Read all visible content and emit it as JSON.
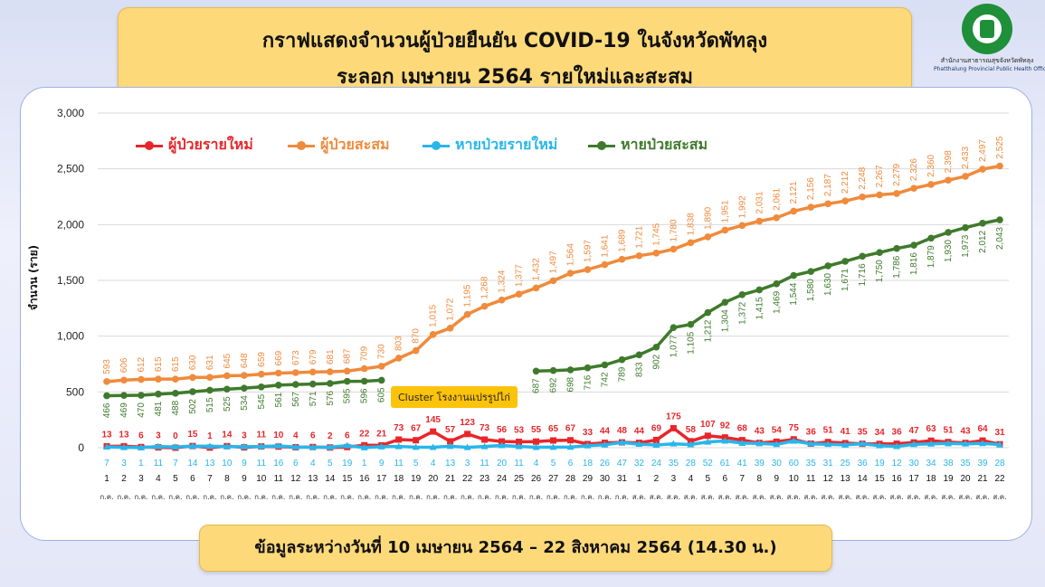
{
  "title": {
    "line1": "กราฟแสดงจำนวนผู้ป่วยยืนยัน COVID-19 ในจังหวัดพัทลุง",
    "line2": "ระลอก เมษายน 2564 รายใหม่และสะสม"
  },
  "logo": {
    "thai": "สำนักงานสาธารณสุขจังหวัดพัทลุง",
    "eng": "Phatthalung Provincial Public Health Office"
  },
  "footer": "ข้อมูลระหว่างวันที่ 10 เมษายน 2564 – 22 สิงหาคม 2564 (14.30 น.)",
  "annotation": "Cluster โรงงานแปรรูปไก่",
  "colors": {
    "new_cases": "#e8262a",
    "cumulative": "#f08a3c",
    "new_recovered": "#28b6ea",
    "cum_recovered": "#3f7a2c"
  },
  "chart_data": {
    "type": "line",
    "ylabel": "จำนวน (ราย)",
    "ylim": [
      0,
      3000
    ],
    "yticks": [
      "0",
      "500",
      "1,000",
      "1,500",
      "2,000",
      "2,500",
      "3,000"
    ],
    "x": [
      "1",
      "2",
      "3",
      "4",
      "5",
      "6",
      "7",
      "8",
      "9",
      "10",
      "11",
      "12",
      "13",
      "14",
      "15",
      "16",
      "17",
      "18",
      "19",
      "20",
      "21",
      "22",
      "23",
      "24",
      "25",
      "26",
      "27",
      "28",
      "29",
      "30",
      "31",
      "1",
      "2",
      "3",
      "4",
      "5",
      "6",
      "7",
      "8",
      "9",
      "10",
      "11",
      "12",
      "13",
      "14",
      "15",
      "16",
      "17",
      "18",
      "19",
      "20",
      "21",
      "22"
    ],
    "x_month": [
      "ก.ค.",
      "ก.ค.",
      "ก.ค.",
      "ก.ค.",
      "ก.ค.",
      "ก.ค.",
      "ก.ค.",
      "ก.ค.",
      "ก.ค.",
      "ก.ค.",
      "ก.ค.",
      "ก.ค.",
      "ก.ค.",
      "ก.ค.",
      "ก.ค.",
      "ก.ค.",
      "ก.ค.",
      "ก.ค.",
      "ก.ค.",
      "ก.ค.",
      "ก.ค.",
      "ก.ค.",
      "ก.ค.",
      "ก.ค.",
      "ก.ค.",
      "ก.ค.",
      "ก.ค.",
      "ก.ค.",
      "ก.ค.",
      "ก.ค.",
      "ก.ค.",
      "ส.ค.",
      "ส.ค.",
      "ส.ค.",
      "ส.ค.",
      "ส.ค.",
      "ส.ค.",
      "ส.ค.",
      "ส.ค.",
      "ส.ค.",
      "ส.ค.",
      "ส.ค.",
      "ส.ค.",
      "ส.ค.",
      "ส.ค.",
      "ส.ค.",
      "ส.ค.",
      "ส.ค.",
      "ส.ค.",
      "ส.ค.",
      "ส.ค.",
      "ส.ค.",
      "ส.ค."
    ],
    "legend_position": "top-left",
    "series": [
      {
        "name": "ผู้ป่วยรายใหม่",
        "key": "new_cases",
        "values": [
          13,
          13,
          6,
          3,
          0,
          15,
          1,
          14,
          3,
          11,
          10,
          4,
          6,
          2,
          6,
          22,
          21,
          73,
          67,
          145,
          57,
          123,
          73,
          56,
          53,
          55,
          65,
          67,
          33,
          44,
          48,
          44,
          69,
          175,
          58,
          107,
          92,
          68,
          43,
          54,
          75,
          36,
          51,
          41,
          35,
          34,
          36,
          47,
          63,
          51,
          43,
          64,
          31
        ]
      },
      {
        "name": "ผู้ป่วยสะสม",
        "key": "cumulative",
        "values": [
          593,
          606,
          612,
          615,
          615,
          630,
          631,
          645,
          648,
          659,
          669,
          673,
          679,
          681,
          687,
          709,
          730,
          803,
          870,
          1015,
          1072,
          1195,
          1268,
          1324,
          1377,
          1432,
          1497,
          1564,
          1597,
          1641,
          1689,
          1721,
          1745,
          1780,
          1838,
          1890,
          1951,
          1992,
          2031,
          2061,
          2121,
          2156,
          2187,
          2212,
          2248,
          2267,
          2279,
          2326,
          2360,
          2398,
          2433,
          2497,
          2525
        ]
      },
      {
        "name": "หายป่วยรายใหม่",
        "key": "new_recovered",
        "values": [
          7,
          3,
          1,
          11,
          7,
          14,
          13,
          10,
          9,
          11,
          16,
          6,
          4,
          5,
          19,
          1,
          9,
          11,
          5,
          4,
          13,
          3,
          11,
          20,
          11,
          4,
          5,
          6,
          18,
          26,
          47,
          32,
          24,
          35,
          28,
          52,
          61,
          41,
          39,
          30,
          60,
          35,
          31,
          25,
          36,
          19,
          12,
          30,
          34,
          38,
          35,
          39,
          28
        ]
      },
      {
        "name": "หายป่วยสะสม",
        "key": "cum_recovered",
        "values": [
          466,
          469,
          470,
          481,
          488,
          502,
          515,
          525,
          534,
          545,
          561,
          567,
          571,
          576,
          595,
          596,
          605,
          null,
          null,
          null,
          null,
          null,
          null,
          null,
          null,
          687,
          692,
          698,
          716,
          742,
          789,
          833,
          902,
          1077,
          1105,
          1212,
          1304,
          1372,
          1415,
          1469,
          1544,
          1580,
          1630,
          1671,
          1716,
          1750,
          1786,
          1816,
          1879,
          1930,
          1973,
          2012,
          2043
        ]
      }
    ]
  }
}
